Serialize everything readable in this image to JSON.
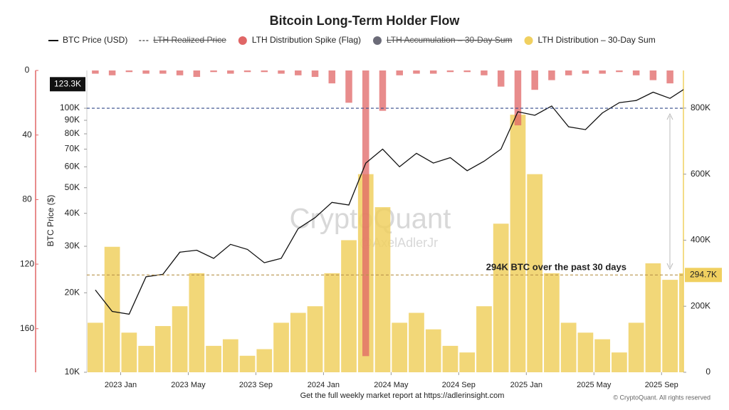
{
  "chart_data": {
    "type": "combo",
    "title": "Bitcoin Long-Term Holder Flow",
    "ylabel": "BTC Price ($)",
    "x": [
      "2022-11",
      "2022-12",
      "2023-01",
      "2023-02",
      "2023-03",
      "2023-04",
      "2023-05",
      "2023-06",
      "2023-07",
      "2023-08",
      "2023-09",
      "2023-10",
      "2023-11",
      "2023-12",
      "2024-01",
      "2024-02",
      "2024-03",
      "2024-04",
      "2024-05",
      "2024-06",
      "2024-07",
      "2024-08",
      "2024-09",
      "2024-10",
      "2024-11",
      "2024-12",
      "2025-01",
      "2025-02",
      "2025-03",
      "2025-04",
      "2025-05",
      "2025-06",
      "2025-07",
      "2025-08",
      "2025-09",
      "2025-10"
    ],
    "xlim": [
      "2022-11",
      "2025-10"
    ],
    "xticks": [
      {
        "value": "2023-01",
        "label": "2023 Jan"
      },
      {
        "value": "2023-05",
        "label": "2023 May"
      },
      {
        "value": "2023-09",
        "label": "2023 Sep"
      },
      {
        "value": "2024-01",
        "label": "2024 Jan"
      },
      {
        "value": "2024-05",
        "label": "2024 May"
      },
      {
        "value": "2024-09",
        "label": "2024 Sep"
      },
      {
        "value": "2025-01",
        "label": "2025 Jan"
      },
      {
        "value": "2025-05",
        "label": "2025 May"
      },
      {
        "value": "2025-09",
        "label": "2025 Sep"
      }
    ],
    "ylim": [
      10000,
      139000
    ],
    "log_scale": true,
    "yticks": [
      {
        "value": 10000,
        "label": "10K"
      },
      {
        "value": 20000,
        "label": "20K"
      },
      {
        "value": 30000,
        "label": "30K"
      },
      {
        "value": 40000,
        "label": "40K"
      },
      {
        "value": 50000,
        "label": "50K"
      },
      {
        "value": 60000,
        "label": "60K"
      },
      {
        "value": 70000,
        "label": "70K"
      },
      {
        "value": 80000,
        "label": "80K"
      },
      {
        "value": 90000,
        "label": "90K"
      },
      {
        "value": 100000,
        "label": "100K"
      }
    ],
    "y2lim": [
      0,
      914000
    ],
    "y2ticks": [
      {
        "value": 0,
        "label": "0"
      },
      {
        "value": 200000,
        "label": "200K"
      },
      {
        "value": 400000,
        "label": "400K"
      },
      {
        "value": 600000,
        "label": "600K"
      },
      {
        "value": 800000,
        "label": "800K"
      }
    ],
    "y3lim": [
      0,
      187
    ],
    "y3_inverted": true,
    "y3ticks": [
      0,
      40,
      80,
      120,
      160
    ],
    "series": [
      {
        "name": "BTC Price (USD)",
        "kind": "line",
        "color": "#111111",
        "values": [
          20500,
          17000,
          16600,
          23000,
          23500,
          28500,
          29000,
          27000,
          30500,
          29200,
          26000,
          27000,
          35000,
          38500,
          44000,
          43000,
          62000,
          70000,
          60000,
          67500,
          62000,
          65000,
          58000,
          63000,
          70000,
          97000,
          94000,
          102000,
          85000,
          83000,
          96000,
          105000,
          107000,
          115000,
          109000,
          120000
        ]
      },
      {
        "name": "LTH Realized Price",
        "kind": "hidden",
        "dash": true,
        "color": "#888888"
      },
      {
        "name": "LTH Distribution Spike (Flag)",
        "kind": "spike",
        "axis": "y3",
        "color": "#e06666",
        "values": [
          2,
          3,
          1,
          2,
          2,
          3,
          4,
          1,
          2,
          1,
          1,
          2,
          3,
          4,
          8,
          20,
          177,
          25,
          3,
          2,
          2,
          1,
          1,
          3,
          10,
          34,
          12,
          6,
          3,
          2,
          2,
          1,
          3,
          6,
          8,
          10
        ]
      },
      {
        "name": "LTH Accumulation – 30-Day Sum",
        "kind": "hidden",
        "color": "#6b6b78"
      },
      {
        "name": "LTH Distribution – 30-Day Sum",
        "kind": "bar",
        "axis": "y2",
        "color": "#f0d060",
        "values": [
          150000,
          380000,
          120000,
          80000,
          140000,
          200000,
          300000,
          80000,
          100000,
          50000,
          70000,
          150000,
          180000,
          200000,
          300000,
          400000,
          600000,
          500000,
          150000,
          180000,
          130000,
          80000,
          60000,
          200000,
          450000,
          780000,
          600000,
          300000,
          150000,
          120000,
          100000,
          60000,
          150000,
          330000,
          280000,
          300000
        ]
      }
    ],
    "reference_lines": [
      {
        "value": 100000,
        "axis": "y",
        "color": "#334a8a"
      },
      {
        "value": 294700,
        "axis": "y2",
        "color": "#b8924a",
        "label": "294.7K"
      }
    ],
    "last_price_label": {
      "value": 123300,
      "label": "123.3K"
    },
    "annotation": "294K BTC over the past 30 days",
    "watermark": "CryptoQuant",
    "watermark_author": "@AxelAdlerJr",
    "footer": "Get the full weekly market report at https://adlerinsight.com",
    "copyright": "© CryptoQuant. All rights reserved"
  }
}
